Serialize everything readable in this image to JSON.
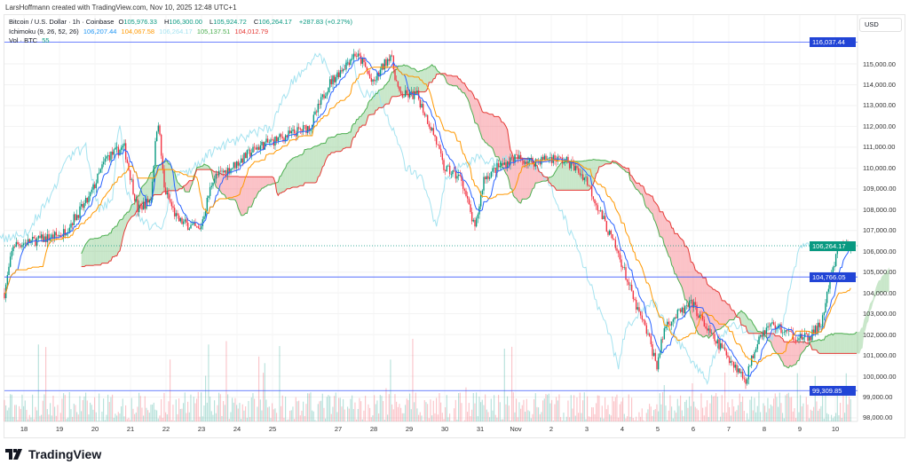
{
  "credit": "LarsHoffmann created with TradingView.com, Nov 10, 2025 12:48 UTC+1",
  "legend": {
    "symbol": "Bitcoin / U.S. Dollar · 1h · Coinbase",
    "o_label": "O",
    "o": "105,976.33",
    "h_label": "H",
    "h": "106,300.00",
    "l_label": "L",
    "l": "105,924.72",
    "c_label": "C",
    "c": "106,264.17",
    "chg": "+287.83 (+0.27%)",
    "ichimoku": "Ichimoku (9, 26, 52, 26)",
    "ich_values": [
      "106,207.44",
      "104,067.58",
      "106,264.17",
      "105,137.51",
      "104,012.79"
    ],
    "vol": "Vol · BTC",
    "vol_value": "55"
  },
  "currency": "USD",
  "price_ticks": [
    "115,000.00",
    "114,000.00",
    "113,000.00",
    "112,000.00",
    "111,000.00",
    "110,000.00",
    "109,000.00",
    "108,000.00",
    "107,000.00",
    "106,000.00",
    "105,000.00",
    "104,000.00",
    "103,000.00",
    "102,000.00",
    "101,000.00",
    "100,000.00",
    "99,000.00",
    "98,000.00"
  ],
  "price_tags": {
    "high_line": "116,037.44",
    "current": "106,264.17",
    "mid_line": "104,766.05",
    "low_line": "99,309.85"
  },
  "date_labels": [
    [
      "18",
      0
    ],
    [
      "19",
      1
    ],
    [
      "20",
      2
    ],
    [
      "21",
      3
    ],
    [
      "22",
      4
    ],
    [
      "23",
      5
    ],
    [
      "24",
      6
    ],
    [
      "25",
      7
    ],
    [
      "27",
      8.85
    ],
    [
      "28",
      9.85
    ],
    [
      "29",
      10.85
    ],
    [
      "30",
      11.85
    ],
    [
      "31",
      12.85
    ],
    [
      "Nov",
      13.85
    ],
    [
      "2",
      14.85
    ],
    [
      "3",
      15.85
    ],
    [
      "4",
      16.85
    ],
    [
      "5",
      17.85
    ],
    [
      "6",
      18.85
    ],
    [
      "7",
      19.85
    ],
    [
      "8",
      20.85
    ],
    [
      "9",
      21.85
    ],
    [
      "10",
      22.85
    ]
  ],
  "logo_text": "TradingView",
  "colors": {
    "up": "#089981",
    "down": "#f23645",
    "tenkan": "#2962ff",
    "kijun": "#ff9800",
    "lagging": "#a5e3f0",
    "spanA": "#4caf50",
    "spanB": "#e53935",
    "hline": "#3d5afe"
  },
  "chart_data": {
    "type": "candlestick",
    "title": "Bitcoin / U.S. Dollar · 1h · Coinbase",
    "ylim": [
      97800,
      116700
    ],
    "hlines": [
      116037.44,
      104766.05,
      99309.85
    ],
    "current": 106264.17,
    "path_days_price": [
      [
        -0.55,
        104000
      ],
      [
        -0.3,
        106300
      ],
      [
        0.3,
        106500
      ],
      [
        1.07,
        106800
      ],
      [
        1.82,
        108500
      ],
      [
        2.32,
        110500
      ],
      [
        2.82,
        111000
      ],
      [
        3.2,
        108000
      ],
      [
        3.57,
        108500
      ],
      [
        3.77,
        112500
      ],
      [
        3.95,
        109000
      ],
      [
        4.32,
        107500
      ],
      [
        4.95,
        107000
      ],
      [
        5.32,
        109500
      ],
      [
        5.82,
        110000
      ],
      [
        6.57,
        111000
      ],
      [
        7.32,
        111500
      ],
      [
        8.07,
        112000
      ],
      [
        8.57,
        114000
      ],
      [
        9.07,
        115000
      ],
      [
        9.32,
        115500
      ],
      [
        9.57,
        115000
      ],
      [
        9.82,
        114000
      ],
      [
        10.32,
        115500
      ],
      [
        10.57,
        113500
      ],
      [
        11.07,
        113500
      ],
      [
        11.32,
        112500
      ],
      [
        11.57,
        111500
      ],
      [
        11.82,
        110000
      ],
      [
        12.32,
        109500
      ],
      [
        12.7,
        107000
      ],
      [
        12.95,
        109500
      ],
      [
        13.32,
        110000
      ],
      [
        13.82,
        110500
      ],
      [
        14.32,
        110300
      ],
      [
        14.82,
        110500
      ],
      [
        15.32,
        110300
      ],
      [
        15.82,
        109500
      ],
      [
        16.32,
        107500
      ],
      [
        16.82,
        105500
      ],
      [
        17.2,
        103500
      ],
      [
        17.57,
        102000
      ],
      [
        17.82,
        100500
      ],
      [
        18.07,
        102500
      ],
      [
        18.45,
        103000
      ],
      [
        18.82,
        103500
      ],
      [
        19.32,
        102000
      ],
      [
        19.82,
        101000
      ],
      [
        20.32,
        99800
      ],
      [
        20.7,
        102000
      ],
      [
        21.07,
        102500
      ],
      [
        21.57,
        102000
      ],
      [
        22.07,
        101800
      ],
      [
        22.45,
        102500
      ],
      [
        22.7,
        104500
      ],
      [
        22.95,
        106300
      ],
      [
        23.32,
        106264
      ]
    ]
  }
}
